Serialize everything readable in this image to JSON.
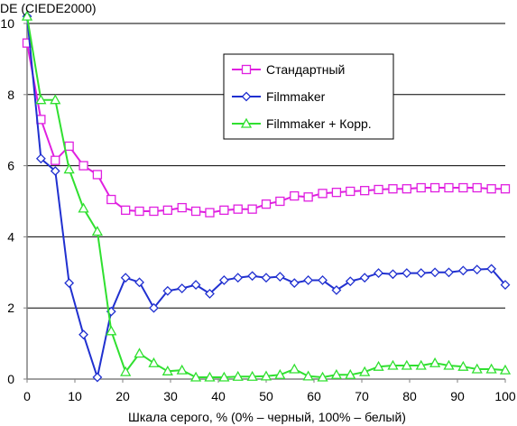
{
  "chart_data": {
    "type": "line",
    "ylabel": "DE (CIEDE2000)",
    "xlabel": "Шкала серого, % (0% – черный, 100% – белый)",
    "xlim": [
      0,
      100
    ],
    "ylim": [
      0,
      10
    ],
    "x_ticks": [
      "0",
      "10",
      "20",
      "30",
      "40",
      "50",
      "60",
      "70",
      "80",
      "90",
      "100"
    ],
    "y_ticks": [
      "0",
      "2",
      "4",
      "6",
      "8",
      "10"
    ],
    "grid": "horizontal",
    "legend_position": "top-right",
    "x": [
      0,
      2.9,
      5.9,
      8.8,
      11.8,
      14.7,
      17.6,
      20.6,
      23.5,
      26.5,
      29.4,
      32.4,
      35.3,
      38.2,
      41.2,
      44.1,
      47.1,
      50,
      52.9,
      55.9,
      58.8,
      61.8,
      64.7,
      67.6,
      70.6,
      73.5,
      76.5,
      79.4,
      82.4,
      85.3,
      88.2,
      91.2,
      94.1,
      97.1,
      100
    ],
    "series": [
      {
        "name": "Стандартный",
        "color": "#e020e0",
        "marker": "square",
        "values": [
          9.45,
          7.3,
          6.15,
          6.55,
          6.0,
          5.75,
          5.05,
          4.75,
          4.72,
          4.72,
          4.75,
          4.82,
          4.72,
          4.68,
          4.75,
          4.78,
          4.78,
          4.92,
          5.0,
          5.15,
          5.12,
          5.22,
          5.25,
          5.28,
          5.3,
          5.33,
          5.35,
          5.35,
          5.38,
          5.38,
          5.38,
          5.38,
          5.38,
          5.35,
          5.35
        ]
      },
      {
        "name": "Filmmaker",
        "color": "#2030d0",
        "marker": "diamond",
        "values": [
          10.2,
          6.2,
          5.85,
          2.7,
          1.25,
          0.05,
          1.9,
          2.85,
          2.72,
          2.0,
          2.48,
          2.55,
          2.65,
          2.4,
          2.78,
          2.85,
          2.9,
          2.85,
          2.88,
          2.7,
          2.78,
          2.78,
          2.5,
          2.75,
          2.85,
          2.98,
          2.95,
          2.98,
          2.98,
          3.0,
          3.0,
          3.05,
          3.08,
          3.1,
          2.65
        ]
      },
      {
        "name": "Filmmaker + Корр.",
        "color": "#30e030",
        "marker": "triangle",
        "values": [
          10.2,
          7.85,
          7.85,
          5.9,
          4.8,
          4.15,
          1.35,
          0.2,
          0.72,
          0.45,
          0.22,
          0.25,
          0.05,
          0.05,
          0.05,
          0.07,
          0.07,
          0.08,
          0.12,
          0.28,
          0.08,
          0.05,
          0.12,
          0.12,
          0.2,
          0.35,
          0.38,
          0.38,
          0.38,
          0.45,
          0.38,
          0.35,
          0.28,
          0.28,
          0.25
        ]
      }
    ]
  }
}
